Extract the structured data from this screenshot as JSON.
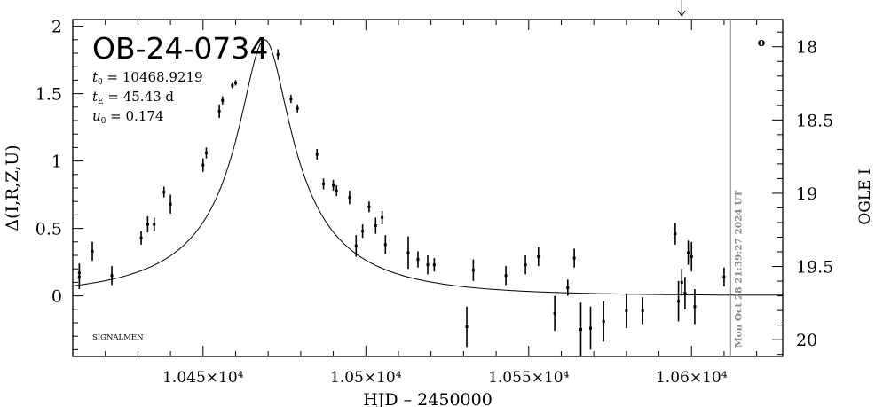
{
  "chart_data": {
    "type": "scatter",
    "title": "OB-24-0734",
    "params": [
      "t₀ = 10468.9219",
      "tᴇ = 45.43 d",
      "u₀ = 0.174"
    ],
    "params_parts": [
      {
        "sym": "t",
        "sub": "0",
        "val": "= 10468.9219"
      },
      {
        "sym": "t",
        "sub": "E",
        "val": "= 45.43 d"
      },
      {
        "sym": "u",
        "sub": "0",
        "val": "= 0.174"
      }
    ],
    "xlabel": "HJD – 2450000",
    "ylabel": "Δ(I,R,Z,U)",
    "ylabel_right": "OGLE I",
    "credit": "SIGNALMEN",
    "timestamp": "Mon Oct 28 21:39:27 2024 UT",
    "circle_marker": "o",
    "xlim": [
      10410,
      10628
    ],
    "ylim": [
      -0.45,
      2.05
    ],
    "right_ylim_note": "magnitude axis, inverted",
    "x_ticks": [
      {
        "value": 10450,
        "label": "1.045×10⁴"
      },
      {
        "value": 10500,
        "label": "1.05×10⁴"
      },
      {
        "value": 10550,
        "label": "1.055×10⁴"
      },
      {
        "value": 10600,
        "label": "1.06×10⁴"
      }
    ],
    "y_ticks": [
      {
        "value": 0,
        "label": "0"
      },
      {
        "value": 0.5,
        "label": "0.5"
      },
      {
        "value": 1,
        "label": "1"
      },
      {
        "value": 1.5,
        "label": "1.5"
      },
      {
        "value": 2,
        "label": "2"
      }
    ],
    "right_ticks": [
      {
        "value": 18,
        "label": "18"
      },
      {
        "value": 18.5,
        "label": "18.5"
      },
      {
        "value": 19,
        "label": "19"
      },
      {
        "value": 19.5,
        "label": "19.5"
      },
      {
        "value": 20,
        "label": "20"
      }
    ],
    "right_axis_map": {
      "mag_at_delta_zero": 19.7,
      "mag_per_delta": -0.92
    },
    "model": {
      "t0": 10468.9219,
      "tE": 45.43,
      "u0": 0.174
    },
    "now_marker_x": 10612,
    "arrow_x": 10597,
    "points": [
      {
        "x": 10412,
        "y": 0.14,
        "e": 0.09
      },
      {
        "x": 10412,
        "y": 0.17,
        "e": 0.07
      },
      {
        "x": 10416,
        "y": 0.33,
        "e": 0.07
      },
      {
        "x": 10422,
        "y": 0.15,
        "e": 0.07
      },
      {
        "x": 10431,
        "y": 0.43,
        "e": 0.05
      },
      {
        "x": 10433,
        "y": 0.53,
        "e": 0.06
      },
      {
        "x": 10435,
        "y": 0.53,
        "e": 0.05
      },
      {
        "x": 10438,
        "y": 0.77,
        "e": 0.04
      },
      {
        "x": 10440,
        "y": 0.68,
        "e": 0.07
      },
      {
        "x": 10450,
        "y": 0.97,
        "e": 0.05
      },
      {
        "x": 10451,
        "y": 1.06,
        "e": 0.04
      },
      {
        "x": 10455,
        "y": 1.37,
        "e": 0.05
      },
      {
        "x": 10456,
        "y": 1.45,
        "e": 0.03
      },
      {
        "x": 10459,
        "y": 1.56,
        "e": 0.02
      },
      {
        "x": 10460,
        "y": 1.58,
        "e": 0.02
      },
      {
        "x": 10473,
        "y": 1.79,
        "e": 0.04
      },
      {
        "x": 10477,
        "y": 1.46,
        "e": 0.03
      },
      {
        "x": 10479,
        "y": 1.39,
        "e": 0.03
      },
      {
        "x": 10485,
        "y": 1.05,
        "e": 0.04
      },
      {
        "x": 10487,
        "y": 0.83,
        "e": 0.04
      },
      {
        "x": 10490,
        "y": 0.82,
        "e": 0.04
      },
      {
        "x": 10491,
        "y": 0.78,
        "e": 0.04
      },
      {
        "x": 10495,
        "y": 0.73,
        "e": 0.05
      },
      {
        "x": 10497,
        "y": 0.37,
        "e": 0.08
      },
      {
        "x": 10499,
        "y": 0.48,
        "e": 0.05
      },
      {
        "x": 10501,
        "y": 0.66,
        "e": 0.04
      },
      {
        "x": 10503,
        "y": 0.52,
        "e": 0.06
      },
      {
        "x": 10505,
        "y": 0.58,
        "e": 0.05
      },
      {
        "x": 10506,
        "y": 0.38,
        "e": 0.07
      },
      {
        "x": 10513,
        "y": 0.32,
        "e": 0.12
      },
      {
        "x": 10516,
        "y": 0.27,
        "e": 0.06
      },
      {
        "x": 10519,
        "y": 0.23,
        "e": 0.07
      },
      {
        "x": 10521,
        "y": 0.23,
        "e": 0.05
      },
      {
        "x": 10531,
        "y": -0.23,
        "e": 0.15
      },
      {
        "x": 10533,
        "y": 0.19,
        "e": 0.08
      },
      {
        "x": 10543,
        "y": 0.15,
        "e": 0.07
      },
      {
        "x": 10549,
        "y": 0.23,
        "e": 0.07
      },
      {
        "x": 10553,
        "y": 0.29,
        "e": 0.07
      },
      {
        "x": 10558,
        "y": -0.13,
        "e": 0.13
      },
      {
        "x": 10562,
        "y": 0.06,
        "e": 0.06
      },
      {
        "x": 10564,
        "y": 0.28,
        "e": 0.07
      },
      {
        "x": 10566,
        "y": -0.25,
        "e": 0.2
      },
      {
        "x": 10569,
        "y": -0.24,
        "e": 0.16
      },
      {
        "x": 10573,
        "y": -0.19,
        "e": 0.15
      },
      {
        "x": 10580,
        "y": -0.11,
        "e": 0.13
      },
      {
        "x": 10585,
        "y": -0.11,
        "e": 0.1
      },
      {
        "x": 10595,
        "y": 0.46,
        "e": 0.08
      },
      {
        "x": 10596,
        "y": -0.04,
        "e": 0.15
      },
      {
        "x": 10597,
        "y": 0.1,
        "e": 0.1
      },
      {
        "x": 10598,
        "y": 0.02,
        "e": 0.12
      },
      {
        "x": 10599,
        "y": 0.32,
        "e": 0.09
      },
      {
        "x": 10600,
        "y": 0.29,
        "e": 0.11
      },
      {
        "x": 10601,
        "y": -0.08,
        "e": 0.13
      },
      {
        "x": 10610,
        "y": 0.14,
        "e": 0.07
      }
    ]
  }
}
